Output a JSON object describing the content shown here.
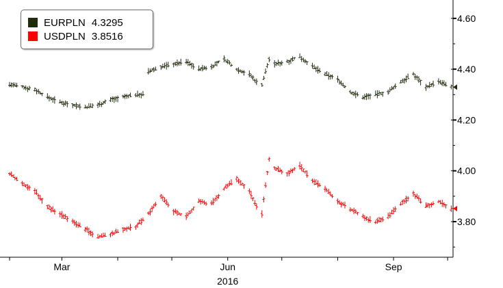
{
  "chart_data": {
    "type": "line",
    "title": "",
    "xlabel": "2016",
    "ylabel": "",
    "x_ticks": [
      {
        "label": "Mar",
        "date": "2016-03-01"
      },
      {
        "label": "Jun",
        "date": "2016-06-01"
      },
      {
        "label": "Sep",
        "date": "2016-09-01"
      }
    ],
    "y_ticks": [
      "4.60",
      "4.40",
      "4.20",
      "4.00",
      "3.80"
    ],
    "ylim": [
      3.66,
      4.64
    ],
    "y_axis_side": "right",
    "grid": false,
    "legend_position": "top-left",
    "series": [
      {
        "name": "EURPLN",
        "last_value": "4.3295",
        "color": "#1f2d0e",
        "points": [
          [
            "2016-02-01",
            4.34
          ],
          [
            "2016-02-08",
            4.33
          ],
          [
            "2016-02-15",
            4.32
          ],
          [
            "2016-02-22",
            4.29
          ],
          [
            "2016-02-29",
            4.27
          ],
          [
            "2016-03-07",
            4.26
          ],
          [
            "2016-03-14",
            4.25
          ],
          [
            "2016-03-21",
            4.26
          ],
          [
            "2016-03-28",
            4.28
          ],
          [
            "2016-04-04",
            4.29
          ],
          [
            "2016-04-11",
            4.3
          ],
          [
            "2016-04-15",
            4.3
          ],
          [
            "2016-04-18",
            4.39
          ],
          [
            "2016-04-25",
            4.41
          ],
          [
            "2016-05-02",
            4.42
          ],
          [
            "2016-05-09",
            4.43
          ],
          [
            "2016-05-16",
            4.4
          ],
          [
            "2016-05-23",
            4.41
          ],
          [
            "2016-05-30",
            4.44
          ],
          [
            "2016-06-06",
            4.4
          ],
          [
            "2016-06-13",
            4.38
          ],
          [
            "2016-06-17",
            4.35
          ],
          [
            "2016-06-20",
            4.34
          ],
          [
            "2016-06-24",
            4.44
          ],
          [
            "2016-06-27",
            4.42
          ],
          [
            "2016-07-04",
            4.43
          ],
          [
            "2016-07-11",
            4.45
          ],
          [
            "2016-07-18",
            4.41
          ],
          [
            "2016-07-25",
            4.38
          ],
          [
            "2016-08-01",
            4.36
          ],
          [
            "2016-08-08",
            4.31
          ],
          [
            "2016-08-15",
            4.29
          ],
          [
            "2016-08-22",
            4.3
          ],
          [
            "2016-08-29",
            4.31
          ],
          [
            "2016-09-05",
            4.35
          ],
          [
            "2016-09-12",
            4.38
          ],
          [
            "2016-09-19",
            4.33
          ],
          [
            "2016-09-26",
            4.35
          ],
          [
            "2016-10-03",
            4.33
          ]
        ]
      },
      {
        "name": "USDPLN",
        "last_value": "3.8516",
        "color": "#ff0000",
        "points": [
          [
            "2016-02-01",
            3.99
          ],
          [
            "2016-02-08",
            3.95
          ],
          [
            "2016-02-15",
            3.92
          ],
          [
            "2016-02-22",
            3.86
          ],
          [
            "2016-02-29",
            3.83
          ],
          [
            "2016-03-07",
            3.8
          ],
          [
            "2016-03-14",
            3.77
          ],
          [
            "2016-03-21",
            3.74
          ],
          [
            "2016-03-28",
            3.75
          ],
          [
            "2016-04-04",
            3.77
          ],
          [
            "2016-04-11",
            3.78
          ],
          [
            "2016-04-18",
            3.83
          ],
          [
            "2016-04-25",
            3.9
          ],
          [
            "2016-05-02",
            3.84
          ],
          [
            "2016-05-09",
            3.82
          ],
          [
            "2016-05-16",
            3.88
          ],
          [
            "2016-05-23",
            3.87
          ],
          [
            "2016-05-30",
            3.93
          ],
          [
            "2016-06-06",
            3.97
          ],
          [
            "2016-06-13",
            3.92
          ],
          [
            "2016-06-17",
            3.86
          ],
          [
            "2016-06-20",
            3.83
          ],
          [
            "2016-06-24",
            4.05
          ],
          [
            "2016-06-27",
            4.01
          ],
          [
            "2016-07-04",
            3.99
          ],
          [
            "2016-07-11",
            4.02
          ],
          [
            "2016-07-18",
            3.96
          ],
          [
            "2016-07-25",
            3.93
          ],
          [
            "2016-08-01",
            3.88
          ],
          [
            "2016-08-08",
            3.85
          ],
          [
            "2016-08-15",
            3.82
          ],
          [
            "2016-08-22",
            3.8
          ],
          [
            "2016-08-29",
            3.82
          ],
          [
            "2016-09-05",
            3.87
          ],
          [
            "2016-09-12",
            3.91
          ],
          [
            "2016-09-19",
            3.86
          ],
          [
            "2016-09-26",
            3.88
          ],
          [
            "2016-10-03",
            3.85
          ]
        ]
      }
    ]
  }
}
